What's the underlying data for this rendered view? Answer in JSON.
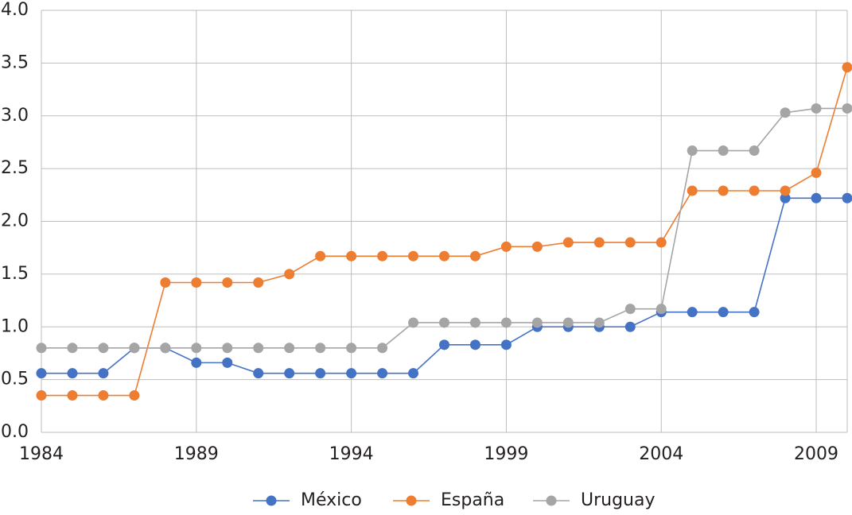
{
  "chart_data": {
    "type": "line",
    "x": [
      1984,
      1985,
      1986,
      1987,
      1988,
      1989,
      1990,
      1991,
      1992,
      1993,
      1994,
      1995,
      1996,
      1997,
      1998,
      1999,
      2000,
      2001,
      2002,
      2003,
      2004,
      2005,
      2006,
      2007,
      2008,
      2009,
      2010
    ],
    "series": [
      {
        "name": "México",
        "color": "#4472c4",
        "values": [
          0.56,
          0.56,
          0.56,
          0.8,
          0.8,
          0.66,
          0.66,
          0.56,
          0.56,
          0.56,
          0.56,
          0.56,
          0.56,
          0.83,
          0.83,
          0.83,
          1.0,
          1.0,
          1.0,
          1.0,
          1.14,
          1.14,
          1.14,
          1.14,
          2.22,
          2.22,
          2.22
        ]
      },
      {
        "name": "España",
        "color": "#ed7d31",
        "values": [
          0.35,
          0.35,
          0.35,
          0.35,
          1.42,
          1.42,
          1.42,
          1.42,
          1.5,
          1.67,
          1.67,
          1.67,
          1.67,
          1.67,
          1.67,
          1.76,
          1.76,
          1.8,
          1.8,
          1.8,
          1.8,
          2.29,
          2.29,
          2.29,
          2.29,
          2.46,
          3.46
        ]
      },
      {
        "name": "Uruguay",
        "color": "#a5a5a5",
        "values": [
          0.8,
          0.8,
          0.8,
          0.8,
          0.8,
          0.8,
          0.8,
          0.8,
          0.8,
          0.8,
          0.8,
          0.8,
          1.04,
          1.04,
          1.04,
          1.04,
          1.04,
          1.04,
          1.04,
          1.17,
          1.17,
          2.67,
          2.67,
          2.67,
          3.03,
          3.07,
          3.07
        ]
      }
    ],
    "xlim": [
      1984,
      2010
    ],
    "xticks": [
      1984,
      1989,
      1994,
      1999,
      2004,
      2009
    ],
    "ylim": [
      0,
      4
    ],
    "yticks": [
      {
        "value": 0,
        "label": "0.0"
      },
      {
        "value": 0.5,
        "label": "0.5"
      },
      {
        "value": 1,
        "label": "1.0"
      },
      {
        "value": 1.5,
        "label": "1.5"
      },
      {
        "value": 2,
        "label": "2.0"
      },
      {
        "value": 2.5,
        "label": "2.5"
      },
      {
        "value": 3,
        "label": "3.0"
      },
      {
        "value": 3.5,
        "label": "3.5"
      },
      {
        "value": 4,
        "label": "4.0"
      }
    ],
    "grid": true,
    "legend": "bottom"
  }
}
